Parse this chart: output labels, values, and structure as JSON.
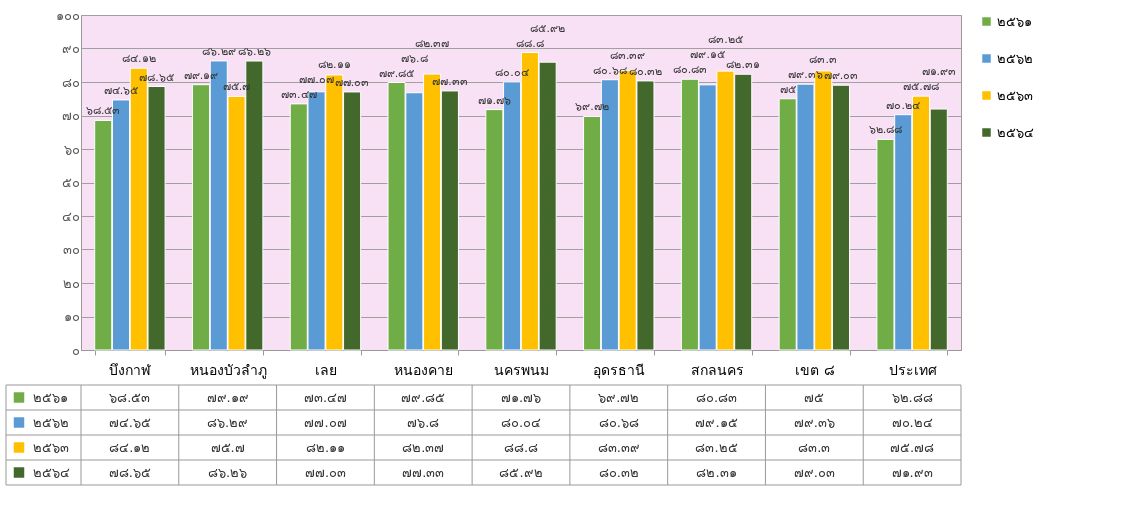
{
  "chart_data": {
    "type": "bar",
    "categories": [
      "บึงกาฬ",
      "หนองบัวลำภู",
      "เลย",
      "หนองคาย",
      "นครพนม",
      "อุดรธานี",
      "สกลนคร",
      "เขต ๘",
      "ประเทศ"
    ],
    "series": [
      {
        "name": "๒๕๖๑",
        "color": "#70ad47",
        "values": [
          68.53,
          79.19,
          73.47,
          79.85,
          71.76,
          69.72,
          80.83,
          75,
          62.88
        ],
        "value_labels": [
          "๖๘.๕๓",
          "๗๙.๑๙",
          "๗๓.๔๗",
          "๗๙.๘๕",
          "๗๑.๗๖",
          "๖๙.๗๒",
          "๘๐.๘๓",
          "๗๕",
          "๖๒.๘๘"
        ]
      },
      {
        "name": "๒๕๖๒",
        "color": "#5b9bd5",
        "values": [
          74.65,
          86.29,
          77.07,
          76.8,
          80.04,
          80.68,
          79.15,
          79.36,
          70.24
        ],
        "value_labels": [
          "๗๔.๖๕",
          "๘๖.๒๙",
          "๗๗.๐๗",
          "๗๖.๘",
          "๘๐.๐๔",
          "๘๐.๖๘",
          "๗๙.๑๕",
          "๗๙.๓๖",
          "๗๐.๒๔"
        ]
      },
      {
        "name": "๒๕๖๓",
        "color": "#ffc000",
        "values": [
          84.12,
          75.7,
          82.11,
          82.37,
          88.8,
          83.39,
          83.25,
          83.3,
          75.78
        ],
        "value_labels": [
          "๘๔.๑๒",
          "๗๕.๗",
          "๘๒.๑๑",
          "๘๒.๓๗",
          "๘๘.๘",
          "๘๓.๓๙",
          "๘๓.๒๕",
          "๘๓.๓",
          "๗๕.๗๘"
        ]
      },
      {
        "name": "๒๕๖๔",
        "color": "#43682b",
        "values": [
          78.65,
          86.26,
          77.03,
          77.33,
          85.92,
          80.32,
          82.31,
          79.03,
          71.93
        ],
        "value_labels": [
          "๗๘.๖๕",
          "๘๖.๒๖",
          "๗๗.๐๓",
          "๗๗.๓๓",
          "๘๕.๙๒",
          "๘๐.๓๒",
          "๘๒.๓๑",
          "๗๙.๐๓",
          "๗๑.๙๓"
        ]
      }
    ],
    "ylim": [
      0,
      100
    ],
    "yticks": [
      {
        "value": 0,
        "label": "๐"
      },
      {
        "value": 10,
        "label": "๑๐"
      },
      {
        "value": 20,
        "label": "๒๐"
      },
      {
        "value": 30,
        "label": "๓๐"
      },
      {
        "value": 40,
        "label": "๔๐"
      },
      {
        "value": 50,
        "label": "๕๐"
      },
      {
        "value": 60,
        "label": "๖๐"
      },
      {
        "value": 70,
        "label": "๗๐"
      },
      {
        "value": 80,
        "label": "๘๐"
      },
      {
        "value": 90,
        "label": "๙๐"
      },
      {
        "value": 100,
        "label": "๑๐๐"
      }
    ],
    "grid": "y",
    "legend": "right"
  }
}
